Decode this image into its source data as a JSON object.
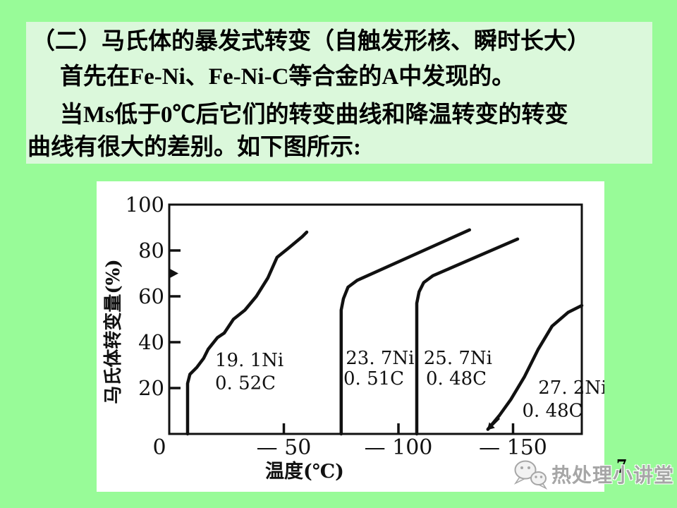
{
  "slide": {
    "colors": {
      "background": "#98FB98",
      "panel": "#DBF8DB",
      "ink": "#111111"
    },
    "page_number": "7",
    "text_lines": [
      "（二）马氏体的暴发式转变（自触发形核、瞬时长大）",
      "首先在Fe-Ni、Fe-Ni-C等合金的A中发现的。",
      "当Ms低于0℃后它们的转变曲线和降温转变的转变",
      "曲线有很大的差别。如下图所示:"
    ]
  },
  "watermark": {
    "label": "热处理小讲堂",
    "icon": "wechat-icon"
  },
  "chart_data": {
    "type": "line",
    "title": "",
    "xlabel": "温度(℃)",
    "ylabel": "马氏体转变量(%)",
    "grid": false,
    "legend": "inline-labels",
    "x_axis": {
      "range": [
        0,
        -180
      ],
      "ticks": [
        0,
        -50,
        -100,
        -150
      ],
      "tick_labels": [
        "0",
        "— 50",
        "— 100",
        "— 150"
      ],
      "unit": "°C"
    },
    "y_axis": {
      "range": [
        0,
        100
      ],
      "ticks": [
        20,
        40,
        60,
        80,
        100
      ],
      "tick_labels": [
        "20",
        "40",
        "60",
        "80",
        "100"
      ],
      "unit": "%",
      "marker_at_pct": 70
    },
    "series": [
      {
        "name": "19.1Ni 0.52C",
        "label_lines": [
          {
            "text": "19. 1Ni",
            "t": -20,
            "p": 36
          },
          {
            "text": "0. 52C",
            "t": -20,
            "p": 26
          }
        ],
        "points": [
          [
            -8,
            0
          ],
          [
            -8,
            22
          ],
          [
            -9,
            26
          ],
          [
            -12,
            29
          ],
          [
            -15,
            33
          ],
          [
            -17,
            37
          ],
          [
            -21,
            42
          ],
          [
            -24,
            44
          ],
          [
            -28,
            50
          ],
          [
            -33,
            54
          ],
          [
            -38,
            60
          ],
          [
            -43,
            68
          ],
          [
            -47,
            77
          ],
          [
            -52,
            81
          ],
          [
            -58,
            86
          ],
          [
            -60,
            88
          ]
        ]
      },
      {
        "name": "23.7Ni 0.51C",
        "label_lines": [
          {
            "text": "23. 7Ni",
            "t": -77,
            "p": 37
          },
          {
            "text": "0. 51C",
            "t": -76,
            "p": 28
          }
        ],
        "points": [
          [
            -75,
            0
          ],
          [
            -75,
            54
          ],
          [
            -76,
            59
          ],
          [
            -78,
            64
          ],
          [
            -82,
            67
          ],
          [
            -131,
            89
          ]
        ]
      },
      {
        "name": "25.7Ni 0.48C",
        "label_lines": [
          {
            "text": "25. 7Ni",
            "t": -111,
            "p": 37
          },
          {
            "text": "0. 48C",
            "t": -112,
            "p": 28
          }
        ],
        "points": [
          [
            -108,
            0
          ],
          [
            -108,
            57
          ],
          [
            -109,
            62
          ],
          [
            -111,
            66
          ],
          [
            -115,
            69
          ],
          [
            -152,
            85
          ]
        ]
      },
      {
        "name": "27.2Ni 0.48C",
        "label_lines": [
          {
            "text": "27. 2Ni",
            "t": -161,
            "p": 24
          },
          {
            "text": "0. 48C",
            "t": -154,
            "p": 14
          }
        ],
        "points": [
          [
            -139,
            2
          ],
          [
            -144,
            8
          ],
          [
            -149,
            15
          ],
          [
            -155,
            25
          ],
          [
            -161,
            37
          ],
          [
            -167,
            47
          ],
          [
            -174,
            53
          ],
          [
            -180,
            56
          ]
        ],
        "arrow_at": {
          "t": -139,
          "p": 2
        }
      }
    ]
  }
}
